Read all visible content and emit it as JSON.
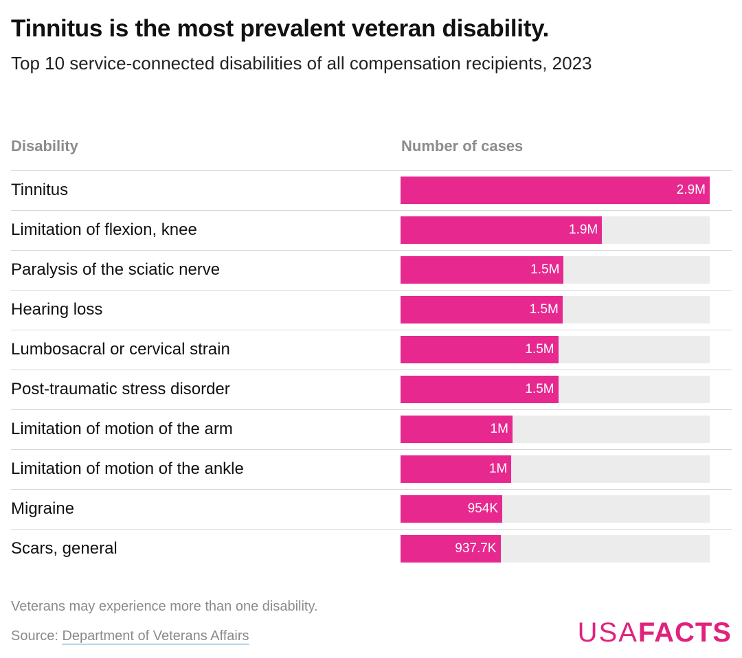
{
  "title": "Tinnitus is the most prevalent veteran disability.",
  "subtitle": "Top 10 service-connected disabilities of all compensation recipients, 2023",
  "columns": {
    "label": "Disability",
    "value": "Number of cases"
  },
  "note": "Veterans may experience more than one disability.",
  "source": {
    "prefix": "Source: ",
    "link_text": "Department of Veterans Affairs"
  },
  "logo": {
    "part1": "USA",
    "part2": "FACTS"
  },
  "colors": {
    "bar": "#e6288f",
    "track": "#ececec",
    "logo": "#e0227f",
    "link_underline": "#b6d6ea"
  },
  "chart_data": {
    "type": "bar",
    "orientation": "horizontal",
    "categories": [
      "Tinnitus",
      "Limitation of flexion, knee",
      "Paralysis of the sciatic nerve",
      "Hearing loss",
      "Lumbosacral or cervical strain",
      "Post-traumatic stress disorder",
      "Limitation of motion of the arm",
      "Limitation of motion of the ankle",
      "Migraine",
      "Scars, general"
    ],
    "values": [
      2900000,
      1890000,
      1530000,
      1520000,
      1480000,
      1480000,
      1050000,
      1040000,
      954000,
      937700
    ],
    "value_labels": [
      "2.9M",
      "1.9M",
      "1.5M",
      "1.5M",
      "1.5M",
      "1.5M",
      "1M",
      "1M",
      "954K",
      "937.7K"
    ],
    "xlim": [
      0,
      2900000
    ],
    "grid": false,
    "legend": "none"
  }
}
